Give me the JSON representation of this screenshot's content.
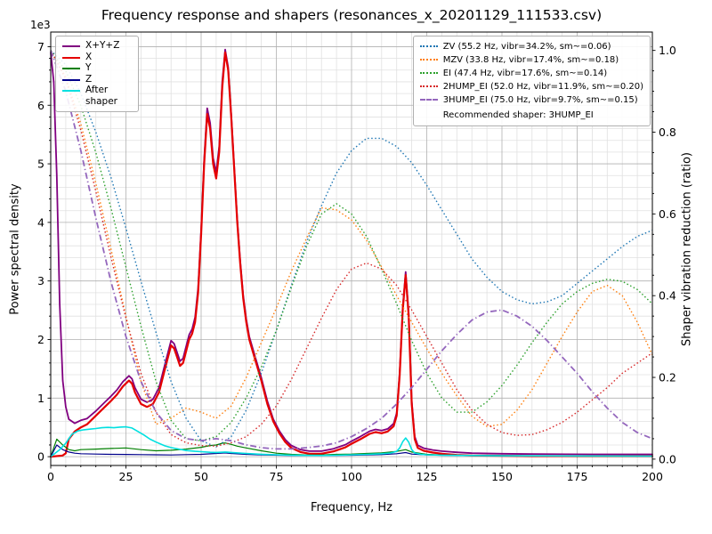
{
  "chart_data": {
    "type": "line",
    "title": "Frequency response and shapers (resonances_x_20201129_111533.csv)",
    "xlabel": "Frequency, Hz",
    "ylabel": "Power spectral density",
    "ylabel2": "Shaper vibration reduction (ratio)",
    "xlim": [
      0,
      200
    ],
    "ylim_left": [
      0,
      7000
    ],
    "ylim_right": [
      0,
      1.0
    ],
    "x_ticks": [
      0,
      25,
      50,
      75,
      100,
      125,
      150,
      175,
      200
    ],
    "x_tick_labels": [
      "0",
      "25",
      "50",
      "75",
      "100",
      "125",
      "150",
      "175",
      "200"
    ],
    "y_ticks_left": {
      "values": [
        0,
        1000,
        2000,
        3000,
        4000,
        5000,
        6000,
        7000
      ],
      "labels": [
        "0",
        "1",
        "2",
        "3",
        "4",
        "5",
        "6",
        "7"
      ],
      "multiplier": "1e3"
    },
    "y_ticks_right": {
      "values": [
        0,
        0.2,
        0.4,
        0.6,
        0.8,
        1.0
      ],
      "labels": [
        "0.0",
        "0.2",
        "0.4",
        "0.6",
        "0.8",
        "1.0"
      ]
    },
    "grid": {
      "major": true,
      "minor": true,
      "x_minor_step": 5,
      "y_minor_step_left": 200,
      "y_minor_step_right": 0.05
    },
    "recommendation": "Recommended shaper: 3HUMP_EI",
    "recommended_shaper": "3HUMP_EI",
    "psd_series": [
      {
        "name": "sum",
        "label": "X+Y+Z",
        "color": "#800080",
        "style": "solid",
        "width": 1.8,
        "axis": "left",
        "x": [
          0,
          1,
          2,
          3,
          4,
          5,
          6,
          8,
          10,
          12,
          15,
          18,
          20,
          22,
          24,
          26,
          27,
          28,
          30,
          32,
          34,
          36,
          38,
          40,
          41,
          42,
          43,
          44,
          45,
          46,
          47,
          48,
          49,
          50,
          51,
          52,
          53,
          54,
          55,
          56,
          57,
          58,
          59,
          60,
          61,
          62,
          63,
          64,
          65,
          66,
          68,
          70,
          72,
          74,
          76,
          78,
          80,
          83,
          86,
          90,
          94,
          98,
          100,
          103,
          106,
          108,
          110,
          112,
          114,
          115,
          116,
          117,
          118,
          119,
          120,
          121,
          122,
          124,
          127,
          130,
          135,
          140,
          150,
          160,
          180,
          200
        ],
        "y": [
          6900,
          6400,
          4800,
          2600,
          1300,
          850,
          640,
          570,
          620,
          650,
          780,
          930,
          1030,
          1140,
          1280,
          1380,
          1330,
          1180,
          980,
          930,
          980,
          1180,
          1580,
          1980,
          1930,
          1780,
          1630,
          1680,
          1880,
          2080,
          2180,
          2380,
          2880,
          3880,
          5080,
          5950,
          5700,
          5100,
          4850,
          5300,
          6400,
          6950,
          6650,
          5850,
          4950,
          4050,
          3350,
          2750,
          2350,
          2050,
          1700,
          1350,
          950,
          640,
          440,
          290,
          190,
          120,
          95,
          95,
          135,
          205,
          265,
          345,
          435,
          465,
          445,
          475,
          565,
          745,
          1445,
          2545,
          3155,
          2455,
          955,
          345,
          195,
          145,
          115,
          95,
          75,
          60,
          50,
          45,
          40,
          40
        ]
      },
      {
        "name": "x",
        "label": "X",
        "color": "#e50000",
        "style": "solid",
        "width": 2.2,
        "axis": "left",
        "x": [
          0,
          4,
          5,
          6,
          8,
          10,
          12,
          15,
          18,
          20,
          22,
          24,
          26,
          27,
          28,
          30,
          32,
          34,
          36,
          38,
          40,
          41,
          42,
          43,
          44,
          45,
          46,
          47,
          48,
          49,
          50,
          51,
          52,
          53,
          54,
          55,
          56,
          57,
          58,
          59,
          60,
          61,
          62,
          63,
          64,
          65,
          66,
          68,
          70,
          72,
          74,
          76,
          78,
          80,
          83,
          86,
          90,
          94,
          98,
          100,
          103,
          106,
          108,
          110,
          112,
          114,
          115,
          116,
          117,
          118,
          119,
          120,
          121,
          122,
          124,
          127,
          130,
          135,
          140,
          150,
          160,
          180,
          200
        ],
        "y": [
          0,
          20,
          60,
          300,
          430,
          500,
          550,
          700,
          850,
          950,
          1060,
          1200,
          1300,
          1250,
          1100,
          900,
          850,
          900,
          1100,
          1500,
          1900,
          1850,
          1700,
          1550,
          1600,
          1800,
          2000,
          2100,
          2300,
          2800,
          3800,
          5000,
          5850,
          5600,
          5000,
          4750,
          5200,
          6300,
          6900,
          6600,
          5800,
          4900,
          4000,
          3300,
          2700,
          2300,
          2000,
          1650,
          1300,
          900,
          600,
          400,
          250,
          150,
          80,
          50,
          50,
          90,
          160,
          220,
          300,
          390,
          420,
          400,
          430,
          520,
          700,
          1400,
          2500,
          3100,
          2400,
          900,
          300,
          150,
          100,
          70,
          50,
          30,
          20,
          15,
          10,
          10,
          10
        ]
      },
      {
        "name": "y",
        "label": "Y",
        "color": "#007f00",
        "style": "solid",
        "width": 1.2,
        "axis": "left",
        "x": [
          0,
          2,
          4,
          6,
          8,
          10,
          15,
          20,
          25,
          30,
          35,
          40,
          45,
          50,
          53,
          55,
          57,
          58,
          60,
          62,
          65,
          70,
          75,
          80,
          85,
          90,
          95,
          100,
          105,
          110,
          115,
          118,
          120,
          125,
          130,
          140,
          150,
          175,
          200
        ],
        "y": [
          0,
          300,
          200,
          120,
          100,
          120,
          130,
          140,
          150,
          120,
          100,
          110,
          130,
          160,
          190,
          200,
          230,
          235,
          210,
          180,
          150,
          100,
          60,
          40,
          30,
          30,
          40,
          45,
          55,
          65,
          90,
          120,
          80,
          40,
          30,
          20,
          15,
          10,
          10
        ]
      },
      {
        "name": "z",
        "label": "Z",
        "color": "#00008b",
        "style": "solid",
        "width": 1.2,
        "axis": "left",
        "x": [
          0,
          2,
          4,
          6,
          8,
          10,
          15,
          20,
          25,
          30,
          35,
          40,
          45,
          50,
          55,
          58,
          60,
          65,
          70,
          80,
          90,
          100,
          110,
          115,
          118,
          120,
          125,
          130,
          140,
          150,
          175,
          200
        ],
        "y": [
          0,
          200,
          120,
          80,
          60,
          50,
          45,
          40,
          38,
          35,
          32,
          30,
          35,
          40,
          55,
          65,
          55,
          40,
          30,
          20,
          20,
          25,
          35,
          50,
          70,
          45,
          30,
          25,
          20,
          15,
          12,
          10
        ]
      },
      {
        "name": "after-shaper",
        "label": "After shaper",
        "color": "#00e0e0",
        "style": "solid",
        "width": 1.6,
        "axis": "left",
        "x": [
          0,
          3,
          5,
          7,
          9,
          11,
          13,
          15,
          17,
          19,
          21,
          23,
          25,
          27,
          29,
          31,
          33,
          35,
          38,
          40,
          43,
          45,
          48,
          50,
          53,
          55,
          58,
          60,
          65,
          70,
          75,
          80,
          85,
          90,
          95,
          100,
          105,
          110,
          113,
          115,
          116,
          117,
          118,
          119,
          120,
          121,
          123,
          125,
          130,
          140,
          150,
          175,
          200
        ],
        "y": [
          0,
          120,
          230,
          380,
          440,
          460,
          470,
          480,
          495,
          500,
          495,
          505,
          510,
          490,
          430,
          370,
          300,
          250,
          185,
          155,
          125,
          105,
          92,
          85,
          75,
          72,
          80,
          72,
          55,
          42,
          32,
          27,
          22,
          20,
          25,
          32,
          40,
          50,
          62,
          92,
          150,
          255,
          320,
          250,
          120,
          62,
          42,
          32,
          25,
          20,
          15,
          12,
          10
        ]
      }
    ],
    "shaper_series": [
      {
        "name": "ZV",
        "label": "ZV (55.2 Hz, vibr=34.2%, sm~=0.06)",
        "freq_hz": 55.2,
        "vibr_pct": 34.2,
        "smoothing": 0.06,
        "color": "#1f77b4",
        "style": "dotted",
        "recommended": false,
        "axis": "right",
        "x_start": 0,
        "x_step": 5,
        "values": [
          1.0,
          0.965,
          0.895,
          0.8,
          0.69,
          0.565,
          0.435,
          0.31,
          0.19,
          0.1,
          0.045,
          0.03,
          0.055,
          0.12,
          0.21,
          0.315,
          0.425,
          0.53,
          0.62,
          0.7,
          0.755,
          0.785,
          0.785,
          0.765,
          0.725,
          0.67,
          0.61,
          0.55,
          0.49,
          0.445,
          0.41,
          0.39,
          0.38,
          0.385,
          0.4,
          0.43,
          0.46,
          0.49,
          0.52,
          0.545,
          0.56
        ]
      },
      {
        "name": "MZV",
        "label": "MZV (33.8 Hz, vibr=17.4%, sm~=0.18)",
        "freq_hz": 33.8,
        "vibr_pct": 17.4,
        "smoothing": 0.18,
        "color": "#ff7f0e",
        "style": "dotted",
        "recommended": false,
        "axis": "right",
        "x_start": 0,
        "x_step": 5,
        "values": [
          1.0,
          0.935,
          0.82,
          0.675,
          0.515,
          0.35,
          0.19,
          0.085,
          0.1,
          0.125,
          0.115,
          0.1,
          0.13,
          0.2,
          0.285,
          0.37,
          0.46,
          0.54,
          0.615,
          0.61,
          0.585,
          0.535,
          0.47,
          0.4,
          0.335,
          0.27,
          0.21,
          0.155,
          0.105,
          0.08,
          0.085,
          0.12,
          0.17,
          0.235,
          0.3,
          0.36,
          0.41,
          0.425,
          0.4,
          0.335,
          0.255
        ]
      },
      {
        "name": "EI",
        "label": "EI (47.4 Hz, vibr=17.6%, sm~=0.14)",
        "freq_hz": 47.4,
        "vibr_pct": 17.6,
        "smoothing": 0.14,
        "color": "#2ca02c",
        "style": "dotted",
        "recommended": false,
        "axis": "right",
        "x_start": 0,
        "x_step": 5,
        "values": [
          1.0,
          0.95,
          0.865,
          0.75,
          0.615,
          0.47,
          0.325,
          0.19,
          0.095,
          0.05,
          0.045,
          0.055,
          0.09,
          0.15,
          0.225,
          0.315,
          0.42,
          0.52,
          0.6,
          0.625,
          0.6,
          0.545,
          0.465,
          0.38,
          0.29,
          0.21,
          0.15,
          0.115,
          0.115,
          0.14,
          0.18,
          0.23,
          0.285,
          0.335,
          0.38,
          0.41,
          0.43,
          0.44,
          0.435,
          0.415,
          0.38
        ]
      },
      {
        "name": "2HUMP_EI",
        "label": "2HUMP_EI (52.0 Hz, vibr=11.9%, sm~=0.20)",
        "freq_hz": 52.0,
        "vibr_pct": 11.9,
        "smoothing": 0.2,
        "color": "#d62728",
        "style": "dotted",
        "recommended": false,
        "axis": "right",
        "x_start": 0,
        "x_step": 5,
        "values": [
          1.0,
          0.93,
          0.805,
          0.655,
          0.495,
          0.345,
          0.21,
          0.115,
          0.06,
          0.04,
          0.033,
          0.032,
          0.04,
          0.055,
          0.085,
          0.13,
          0.195,
          0.27,
          0.345,
          0.415,
          0.465,
          0.48,
          0.465,
          0.425,
          0.365,
          0.3,
          0.235,
          0.17,
          0.12,
          0.085,
          0.065,
          0.058,
          0.06,
          0.072,
          0.09,
          0.115,
          0.145,
          0.175,
          0.21,
          0.235,
          0.26
        ]
      },
      {
        "name": "3HUMP_EI",
        "label": "3HUMP_EI (75.0 Hz, vibr=9.7%, sm~=0.15)",
        "freq_hz": 75.0,
        "vibr_pct": 9.7,
        "smoothing": 0.15,
        "color": "#9467bd",
        "style": "dashdot",
        "recommended": true,
        "axis": "right",
        "x_start": 0,
        "x_step": 5,
        "values": [
          1.0,
          0.9,
          0.755,
          0.59,
          0.435,
          0.3,
          0.19,
          0.115,
          0.07,
          0.05,
          0.045,
          0.05,
          0.045,
          0.035,
          0.028,
          0.025,
          0.025,
          0.028,
          0.032,
          0.04,
          0.055,
          0.075,
          0.1,
          0.135,
          0.175,
          0.22,
          0.265,
          0.305,
          0.34,
          0.36,
          0.365,
          0.35,
          0.325,
          0.29,
          0.25,
          0.21,
          0.165,
          0.125,
          0.09,
          0.065,
          0.05
        ]
      }
    ]
  }
}
